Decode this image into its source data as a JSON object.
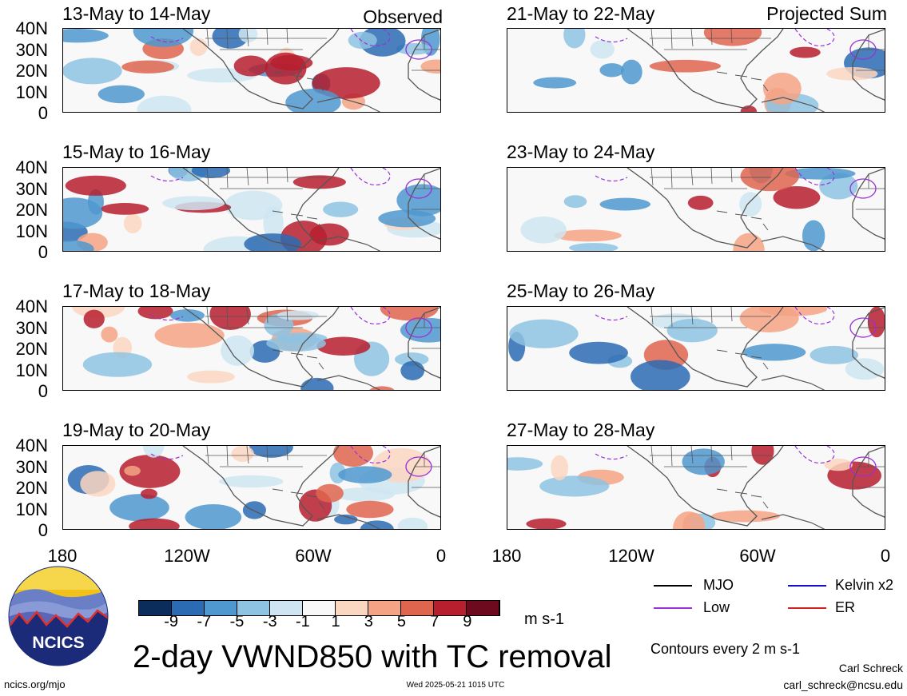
{
  "header": {
    "observed_tag": "Observed",
    "projected_tag": "Projected Sum"
  },
  "panels": [
    {
      "title": "13-May to 14-May",
      "column": "observed",
      "row": 0
    },
    {
      "title": "15-May to 16-May",
      "column": "observed",
      "row": 1
    },
    {
      "title": "17-May to 18-May",
      "column": "observed",
      "row": 2
    },
    {
      "title": "19-May to 20-May",
      "column": "observed",
      "row": 3
    },
    {
      "title": "21-May to 22-May",
      "column": "projected",
      "row": 0
    },
    {
      "title": "23-May to 24-May",
      "column": "projected",
      "row": 1
    },
    {
      "title": "25-May to 26-May",
      "column": "projected",
      "row": 2
    },
    {
      "title": "27-May to 28-May",
      "column": "projected",
      "row": 3
    }
  ],
  "lat_labels": [
    "40N",
    "30N",
    "20N",
    "10N",
    "0"
  ],
  "lon_labels": [
    "180",
    "120W",
    "60W",
    "0"
  ],
  "colorbar": {
    "colors": [
      "#0b2d5c",
      "#2a6bb3",
      "#4f98cf",
      "#8ec3e2",
      "#cfe6f2",
      "#f8f8f8",
      "#fbd6c1",
      "#f5a385",
      "#e0654f",
      "#b71f2e",
      "#6d0a1d"
    ],
    "tick_labels": [
      "-9",
      "-7",
      "-5",
      "-3",
      "-1",
      "1",
      "3",
      "5",
      "7",
      "9"
    ],
    "units": "m s-1"
  },
  "legend": {
    "items": [
      {
        "label": "MJO",
        "color": "#000000"
      },
      {
        "label": "Kelvin x2",
        "color": "#1010c8"
      },
      {
        "label": "Low",
        "color": "#9a30d8"
      },
      {
        "label": "ER",
        "color": "#d02020"
      }
    ],
    "contour_note": "Contours every 2 m s-1"
  },
  "footer": {
    "main_title": "2-day VWND850 with TC removal",
    "logo_text": "NCICS",
    "website": "ncics.org/mjo",
    "timestamp": "Wed 2025-05-21 1015 UTC",
    "author": "Carl Schreck",
    "email": "carl_schreck@ncsu.edu"
  }
}
